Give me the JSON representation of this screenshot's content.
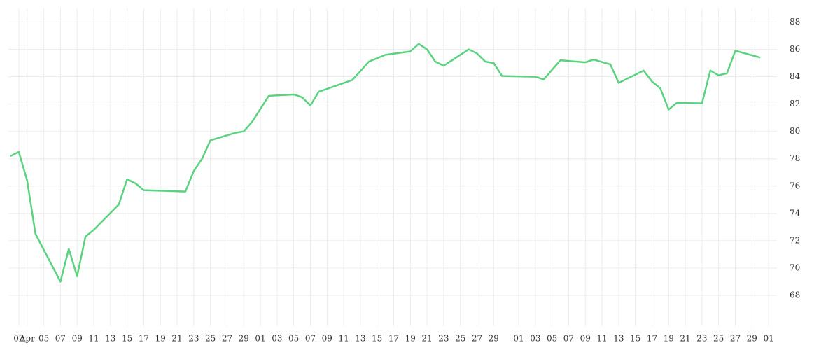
{
  "chart_data": {
    "type": "line",
    "x": [
      "Apr 01",
      "Apr 02",
      "Apr 03",
      "Apr 04",
      "Apr 07",
      "Apr 08",
      "Apr 09",
      "Apr 10",
      "Apr 11",
      "Apr 14",
      "Apr 15",
      "Apr 16",
      "Apr 17",
      "Apr 22",
      "Apr 23",
      "Apr 24",
      "Apr 25",
      "Apr 28",
      "Apr 29",
      "Apr 30",
      "May 02",
      "May 05",
      "May 06",
      "May 07",
      "May 08",
      "May 12",
      "May 13",
      "May 14",
      "May 16",
      "May 19",
      "May 20",
      "May 21",
      "May 22",
      "May 23",
      "May 26",
      "May 27",
      "May 28",
      "May 29",
      "May 30",
      "Jun 03",
      "Jun 04",
      "Jun 05",
      "Jun 06",
      "Jun 09",
      "Jun 10",
      "Jun 12",
      "Jun 13",
      "Jun 16",
      "Jun 17",
      "Jun 18",
      "Jun 19",
      "Jun 20",
      "Jun 23",
      "Jun 24",
      "Jun 25",
      "Jun 26",
      "Jun 27",
      "Jun 30"
    ],
    "series": [
      {
        "color": "#5ad27f",
        "values": [
          78.2,
          78.5,
          76.4,
          72.5,
          69.0,
          71.4,
          69.4,
          72.3,
          72.8,
          74.65,
          76.5,
          76.2,
          75.7,
          75.6,
          77.1,
          78.0,
          79.35,
          79.9,
          80.0,
          80.7,
          82.6,
          82.7,
          82.5,
          81.9,
          82.9,
          83.75,
          84.4,
          85.1,
          85.6,
          85.85,
          86.4,
          86.0,
          85.1,
          84.8,
          86.0,
          85.7,
          85.1,
          85.0,
          84.05,
          84.0,
          83.8,
          84.5,
          85.2,
          85.05,
          85.25,
          84.9,
          83.55,
          84.45,
          83.65,
          83.15,
          81.6,
          82.1,
          82.05,
          84.45,
          84.1,
          84.25,
          85.9,
          85.4
        ]
      }
    ],
    "xlim": [
      "Apr 01",
      "Jul 02"
    ],
    "xticks": [
      {
        "value": "Apr 02",
        "label": "02"
      },
      {
        "value": "Apr 03",
        "label": "Apr"
      },
      {
        "value": "Apr 05",
        "label": "05"
      },
      {
        "value": "Apr 07",
        "label": "07"
      },
      {
        "value": "Apr 09",
        "label": "09"
      },
      {
        "value": "Apr 11",
        "label": "11"
      },
      {
        "value": "Apr 13",
        "label": "13"
      },
      {
        "value": "Apr 15",
        "label": "15"
      },
      {
        "value": "Apr 17",
        "label": "17"
      },
      {
        "value": "Apr 19",
        "label": "19"
      },
      {
        "value": "Apr 21",
        "label": "21"
      },
      {
        "value": "Apr 23",
        "label": "23"
      },
      {
        "value": "Apr 25",
        "label": "25"
      },
      {
        "value": "Apr 27",
        "label": "27"
      },
      {
        "value": "Apr 29",
        "label": "29"
      },
      {
        "value": "May 01",
        "label": "01"
      },
      {
        "value": "May 03",
        "label": "03"
      },
      {
        "value": "May 05",
        "label": "05"
      },
      {
        "value": "May 07",
        "label": "07"
      },
      {
        "value": "May 09",
        "label": "09"
      },
      {
        "value": "May 11",
        "label": "11"
      },
      {
        "value": "May 13",
        "label": "13"
      },
      {
        "value": "May 15",
        "label": "15"
      },
      {
        "value": "May 17",
        "label": "17"
      },
      {
        "value": "May 19",
        "label": "19"
      },
      {
        "value": "May 21",
        "label": "21"
      },
      {
        "value": "May 23",
        "label": "23"
      },
      {
        "value": "May 25",
        "label": "25"
      },
      {
        "value": "May 27",
        "label": "27"
      },
      {
        "value": "May 29",
        "label": "29"
      },
      {
        "value": "Jun 01",
        "label": "01"
      },
      {
        "value": "Jun 03",
        "label": "03"
      },
      {
        "value": "Jun 05",
        "label": "05"
      },
      {
        "value": "Jun 07",
        "label": "07"
      },
      {
        "value": "Jun 09",
        "label": "09"
      },
      {
        "value": "Jun 11",
        "label": "11"
      },
      {
        "value": "Jun 13",
        "label": "13"
      },
      {
        "value": "Jun 15",
        "label": "15"
      },
      {
        "value": "Jun 17",
        "label": "17"
      },
      {
        "value": "Jun 19",
        "label": "19"
      },
      {
        "value": "Jun 21",
        "label": "21"
      },
      {
        "value": "Jun 23",
        "label": "23"
      },
      {
        "value": "Jun 25",
        "label": "25"
      },
      {
        "value": "Jun 27",
        "label": "27"
      },
      {
        "value": "Jun 29",
        "label": "29"
      },
      {
        "value": "Jul 01",
        "label": "01"
      }
    ],
    "ylim": [
      66,
      89
    ],
    "yticks": [
      68,
      70,
      72,
      74,
      76,
      78,
      80,
      82,
      84,
      86,
      88
    ],
    "grid": true
  }
}
